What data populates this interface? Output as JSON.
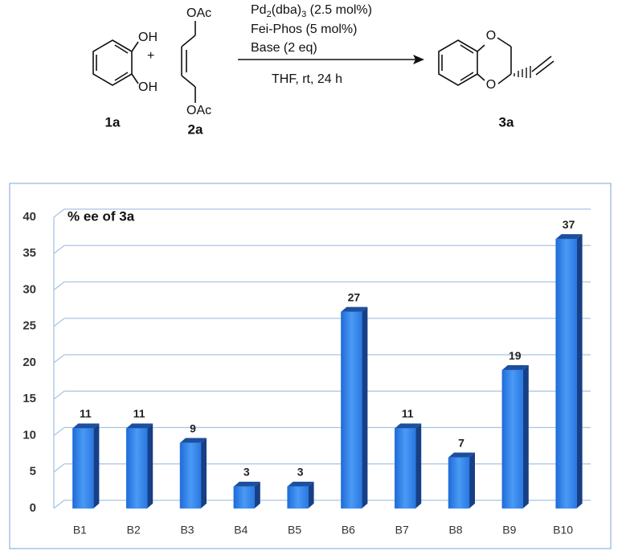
{
  "scheme": {
    "reactant1": {
      "groups": [
        "OH",
        "OH"
      ],
      "label": "1a"
    },
    "plus": "+",
    "reactant2": {
      "groups": [
        "OAc",
        "OAc"
      ],
      "label": "2a"
    },
    "catalyst": [
      "Pd",
      "2",
      "(dba)",
      "3",
      " (2.5 mol%)"
    ],
    "ligand": "Fei-Phos (5 mol%)",
    "base": "Base (2 eq)",
    "solvent": "THF, rt, 24 h",
    "product": {
      "atoms": [
        "O",
        "O"
      ],
      "label": "3a"
    }
  },
  "chart_data": {
    "type": "bar3d",
    "title": "% ee of 3a",
    "categories": [
      "B1",
      "B2",
      "B3",
      "B4",
      "B5",
      "B6",
      "B7",
      "B8",
      "B9",
      "B10"
    ],
    "values": [
      11,
      11,
      9,
      3,
      3,
      27,
      11,
      7,
      19,
      37
    ],
    "color": "#2f7fe0",
    "ylim": [
      0,
      40
    ],
    "yticks": [
      0,
      5,
      10,
      15,
      20,
      25,
      30,
      35,
      40
    ],
    "grid": true
  }
}
